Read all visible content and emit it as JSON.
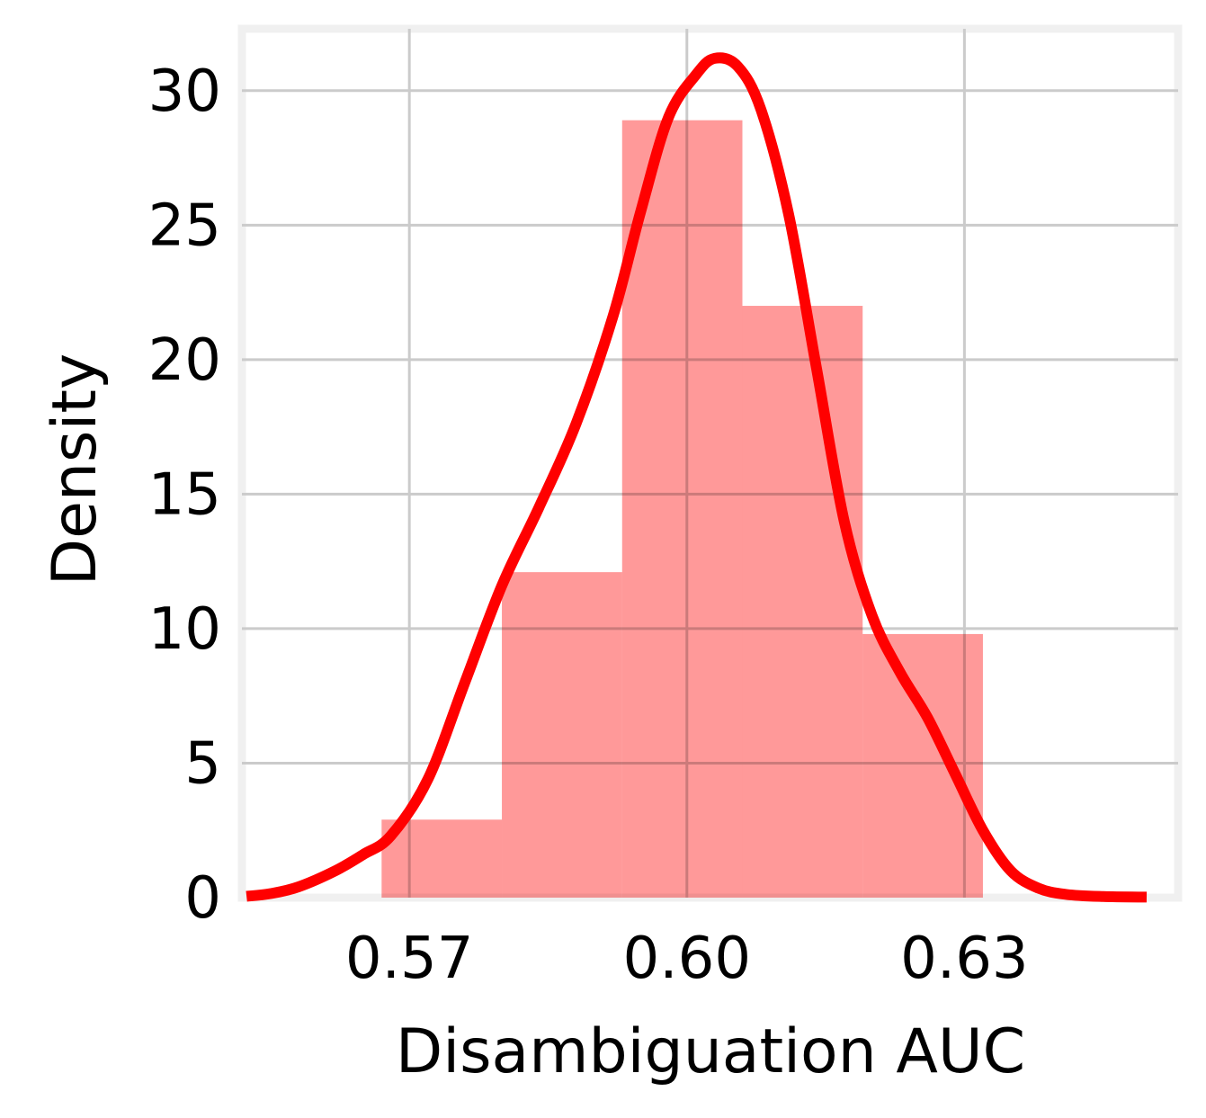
{
  "chart_data": {
    "type": "bar",
    "title": "",
    "xlabel": "Disambiguation AUC",
    "ylabel": "Density",
    "xlim": [
      0.5519,
      0.6531
    ],
    "ylim": [
      0,
      32.3
    ],
    "x_ticks": [
      0.57,
      0.6,
      0.63
    ],
    "x_tick_labels": [
      "0.57",
      "0.60",
      "0.63"
    ],
    "y_ticks": [
      0,
      5,
      10,
      15,
      20,
      25,
      30
    ],
    "y_tick_labels": [
      "0",
      "5",
      "10",
      "15",
      "20",
      "25",
      "30"
    ],
    "grid": true,
    "legend": "none",
    "histogram": {
      "bin_edges": [
        0.567,
        0.58,
        0.593,
        0.606,
        0.619,
        0.632
      ],
      "values": [
        2.9,
        12.1,
        28.9,
        22.0,
        9.8
      ],
      "color": "#ff9999"
    },
    "kde": {
      "x": [
        0.5524,
        0.555,
        0.558,
        0.562,
        0.565,
        0.568,
        0.572,
        0.576,
        0.58,
        0.584,
        0.588,
        0.592,
        0.595,
        0.598,
        0.601,
        0.603,
        0.6055,
        0.608,
        0.611,
        0.614,
        0.617,
        0.62,
        0.623,
        0.626,
        0.629,
        0.632,
        0.635,
        0.638,
        0.641,
        0.645,
        0.6497
      ],
      "y": [
        0.05,
        0.15,
        0.4,
        1.0,
        1.6,
        2.3,
        4.4,
        8.0,
        11.6,
        14.5,
        17.6,
        21.6,
        25.5,
        29.0,
        30.6,
        31.2,
        30.9,
        29.3,
        25.4,
        19.7,
        14.0,
        10.5,
        8.4,
        6.7,
        4.6,
        2.5,
        1.0,
        0.35,
        0.12,
        0.04,
        0.02
      ],
      "color": "#ff0000"
    }
  }
}
